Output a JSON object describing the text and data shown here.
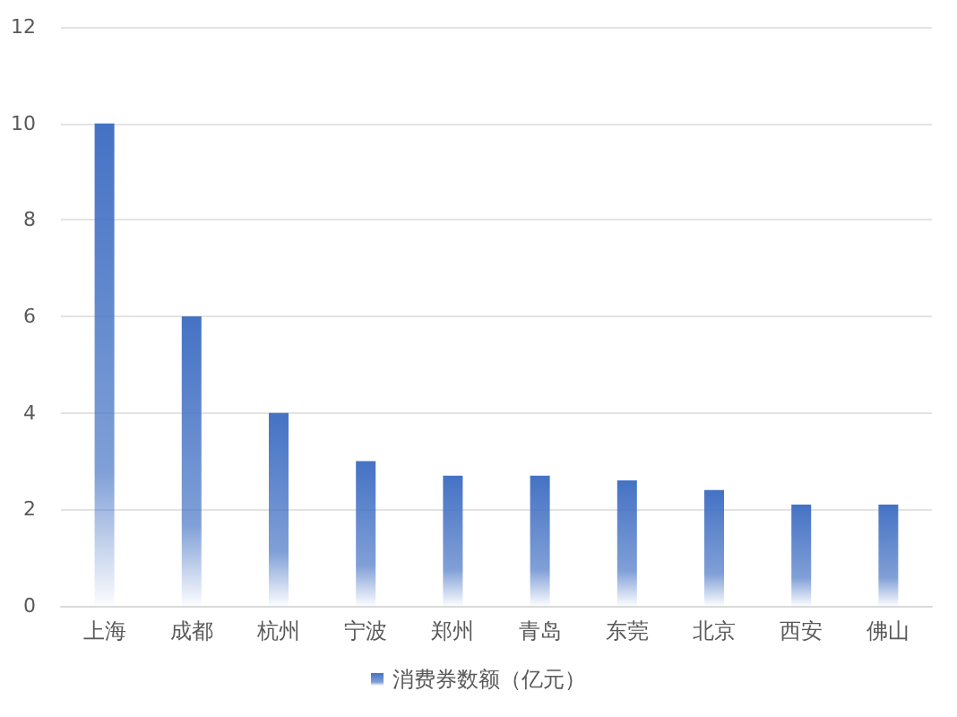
{
  "chart_data": {
    "type": "bar",
    "categories": [
      "上海",
      "成都",
      "杭州",
      "宁波",
      "郑州",
      "青岛",
      "东莞",
      "北京",
      "西安",
      "佛山"
    ],
    "series": [
      {
        "name": "消费券数额（亿元）",
        "color": "#4472c4",
        "values": [
          10,
          6,
          4,
          3,
          2.7,
          2.7,
          2.6,
          2.4,
          2.1,
          2.1
        ]
      }
    ],
    "ylim": [
      0,
      12
    ],
    "yticks": [
      0,
      2,
      4,
      6,
      8,
      10,
      12
    ],
    "grid": "y",
    "legend": "bottom"
  }
}
